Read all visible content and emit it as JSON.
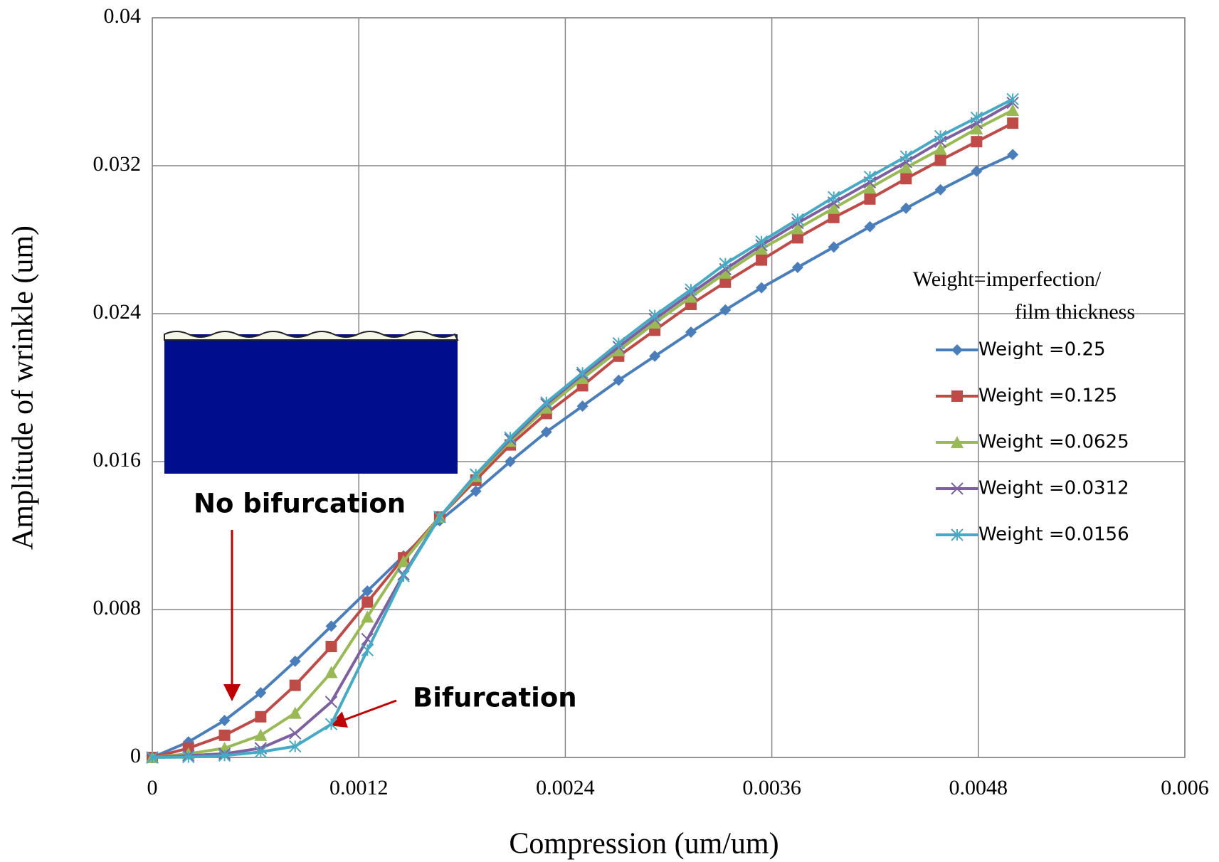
{
  "chart_data": {
    "type": "line",
    "x_label": "Compression (um/um)",
    "y_label": "Amplitude of  wrinkle (um)",
    "x": [
      0,
      0.00021,
      0.00042,
      0.00063,
      0.00083,
      0.00104,
      0.00125,
      0.00146,
      0.00167,
      0.00188,
      0.00208,
      0.00229,
      0.0025,
      0.00271,
      0.00292,
      0.00313,
      0.00333,
      0.00354,
      0.00375,
      0.00396,
      0.00417,
      0.00438,
      0.00458,
      0.00479,
      0.005
    ],
    "series": [
      {
        "name": "Weight =0.25",
        "color": "#4a7ebb",
        "marker": "diamond",
        "values": [
          0,
          0.00084,
          0.002,
          0.0035,
          0.0052,
          0.0071,
          0.009,
          0.0109,
          0.0128,
          0.0144,
          0.016,
          0.0176,
          0.019,
          0.0204,
          0.0217,
          0.023,
          0.0242,
          0.0254,
          0.0265,
          0.0276,
          0.0287,
          0.0297,
          0.0307,
          0.0317,
          0.0326
        ]
      },
      {
        "name": "Weight =0.125",
        "color": "#be4b48",
        "marker": "square",
        "values": [
          0,
          0.0005,
          0.0012,
          0.0022,
          0.0039,
          0.006,
          0.0084,
          0.0108,
          0.013,
          0.015,
          0.0169,
          0.0186,
          0.0201,
          0.0217,
          0.0231,
          0.0245,
          0.0257,
          0.0269,
          0.0281,
          0.0292,
          0.0302,
          0.0313,
          0.0323,
          0.0333,
          0.0343
        ]
      },
      {
        "name": "Weight =0.0625",
        "color": "#98b954",
        "marker": "triangle",
        "values": [
          0,
          0.0002,
          0.0005,
          0.0012,
          0.0024,
          0.0046,
          0.0076,
          0.0106,
          0.013,
          0.0152,
          0.0171,
          0.0189,
          0.0205,
          0.022,
          0.0235,
          0.0249,
          0.0262,
          0.0275,
          0.0286,
          0.0297,
          0.0308,
          0.0319,
          0.0329,
          0.034,
          0.035
        ]
      },
      {
        "name": "Weight =0.0312",
        "color": "#7d60a0",
        "marker": "x",
        "values": [
          0,
          0.0001,
          0.0002,
          0.0005,
          0.0013,
          0.003,
          0.0064,
          0.0099,
          0.013,
          0.0153,
          0.0172,
          0.0191,
          0.0207,
          0.0222,
          0.0237,
          0.0251,
          0.0264,
          0.0277,
          0.0289,
          0.03,
          0.0311,
          0.0322,
          0.0333,
          0.0343,
          0.0354
        ]
      },
      {
        "name": "Weight =0.0156",
        "color": "#46aac5",
        "marker": "star",
        "values": [
          0,
          2e-05,
          0.0001,
          0.0003,
          0.0006,
          0.0018,
          0.0058,
          0.0098,
          0.013,
          0.0153,
          0.0173,
          0.0192,
          0.0208,
          0.0224,
          0.0239,
          0.0253,
          0.0267,
          0.0279,
          0.0291,
          0.0303,
          0.0314,
          0.0325,
          0.0336,
          0.0346,
          0.0356
        ]
      }
    ],
    "xlim": [
      0,
      0.006
    ],
    "xticks": [
      0,
      0.0012,
      0.0024,
      0.0036,
      0.0048,
      0.006
    ],
    "ylim": [
      0,
      0.04
    ],
    "yticks": [
      0,
      0.008,
      0.016,
      0.024,
      0.032,
      0.04
    ],
    "grid": true,
    "legend": "right",
    "legend_title": [
      "Weight=imperfection/",
      "film thickness"
    ],
    "annotations": [
      "No bifurcation",
      "Bifurcation"
    ]
  }
}
